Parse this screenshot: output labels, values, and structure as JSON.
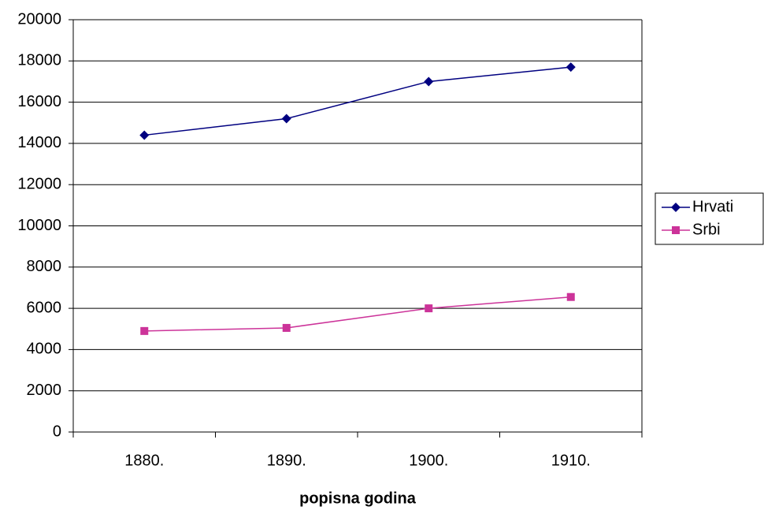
{
  "chart_data": {
    "type": "line",
    "x_label": "popisna godina",
    "categories": [
      "1880.",
      "1890.",
      "1900.",
      "1910."
    ],
    "series": [
      {
        "name": "Hrvati",
        "color": "#000080",
        "marker": "diamond",
        "values": [
          14400,
          15200,
          17000,
          17700
        ]
      },
      {
        "name": "Srbi",
        "color": "#cc3399",
        "marker": "square",
        "values": [
          4900,
          5050,
          6000,
          6550
        ]
      }
    ],
    "ylim": [
      0,
      20000
    ],
    "yticks": [
      0,
      2000,
      4000,
      6000,
      8000,
      10000,
      12000,
      14000,
      16000,
      18000,
      20000
    ],
    "grid": true,
    "legend": "right"
  }
}
